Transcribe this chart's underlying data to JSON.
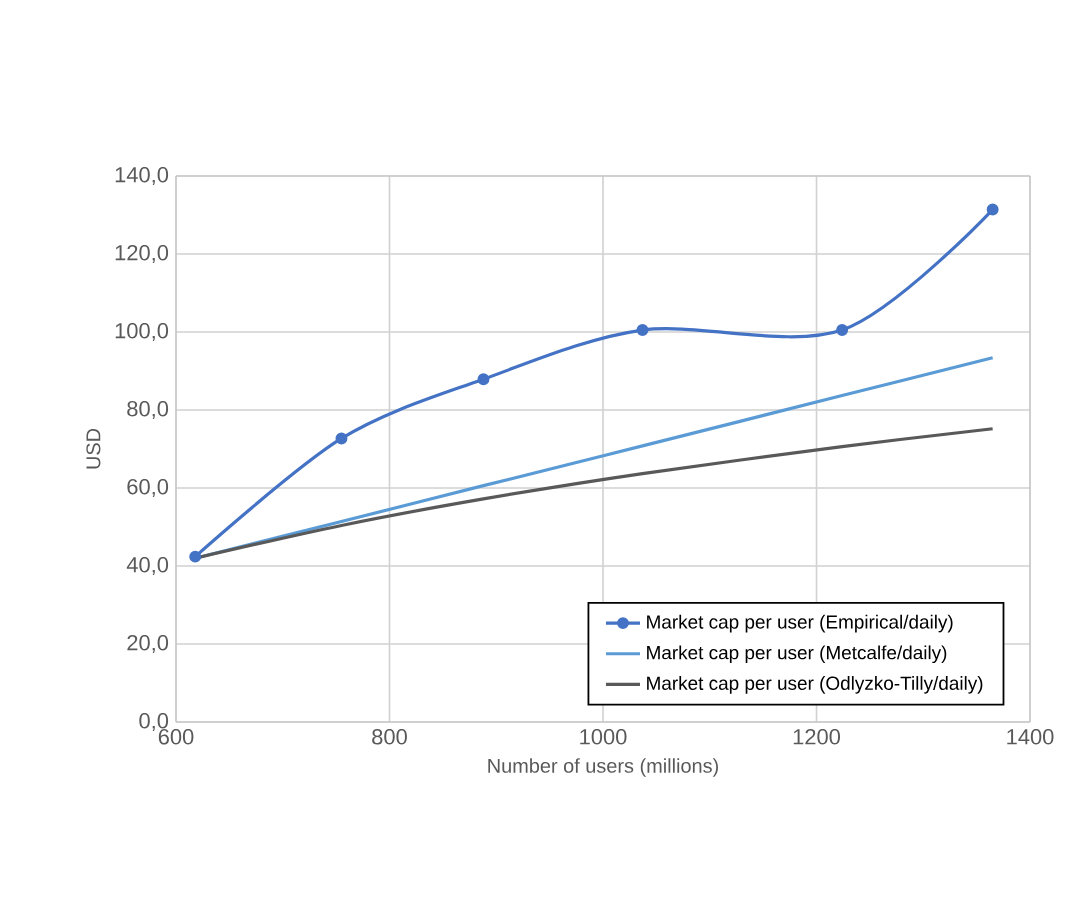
{
  "chart_data": {
    "type": "line",
    "xlabel": "Number of users (millions)",
    "ylabel": "USD",
    "xlim": [
      600,
      1400
    ],
    "xticks": [
      600,
      800,
      1000,
      1200,
      1400
    ],
    "ylim": [
      0,
      140
    ],
    "yticks": [
      {
        "value": 0,
        "label": "0,0"
      },
      {
        "value": 20,
        "label": "20,0"
      },
      {
        "value": 40,
        "label": "40,0"
      },
      {
        "value": 60,
        "label": "60,0"
      },
      {
        "value": 80,
        "label": "80,0"
      },
      {
        "value": 100,
        "label": "100,0"
      },
      {
        "value": 120,
        "label": "120,0"
      },
      {
        "value": 140,
        "label": "140,0"
      }
    ],
    "x": [
      618,
      755,
      888,
      1037,
      1224,
      1365
    ],
    "grid": true,
    "legend": "bottom right",
    "series": [
      {
        "name": "Market cap per user (Empirical/daily)",
        "color": "#4472c4",
        "values": [
          42.4,
          72.7,
          87.9,
          100.5,
          100.5,
          131.4
        ],
        "marker": "circle"
      },
      {
        "name": "Market cap per user (Metcalfe/daily)",
        "color": "#5b9bd5",
        "values": [
          42,
          51.4,
          60.6,
          70.8,
          83.7,
          93.4
        ],
        "marker": "none"
      },
      {
        "name": "Market cap per user (Odlyzko-Tilly/daily)",
        "color": "#595959",
        "values": [
          42,
          50.4,
          57.2,
          63.7,
          70.6,
          75.2
        ],
        "marker": "none"
      }
    ]
  }
}
